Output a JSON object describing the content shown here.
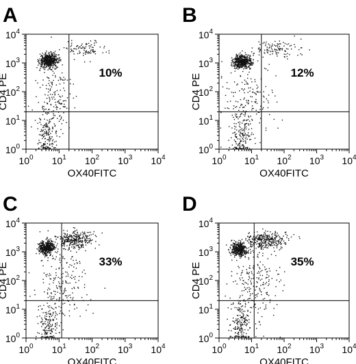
{
  "colors": {
    "background": "#ffffff",
    "ink": "#000000",
    "dots": "#111111"
  },
  "chart_data": [
    {
      "type": "scatter",
      "panel_label": "A",
      "xlabel": "OX40FITC",
      "ylabel": "CD4 PE",
      "x_scale": "log",
      "y_scale": "log",
      "xlim": [
        1,
        10000
      ],
      "ylim": [
        1,
        10000
      ],
      "x_ticks": [
        {
          "base": "10",
          "exp": "0"
        },
        {
          "base": "10",
          "exp": "1"
        },
        {
          "base": "10",
          "exp": "2"
        },
        {
          "base": "10",
          "exp": "3"
        },
        {
          "base": "10",
          "exp": "4"
        }
      ],
      "y_ticks": [
        {
          "base": "10",
          "exp": "0"
        },
        {
          "base": "10",
          "exp": "1"
        },
        {
          "base": "10",
          "exp": "2"
        },
        {
          "base": "10",
          "exp": "3"
        },
        {
          "base": "10",
          "exp": "4"
        }
      ],
      "quadrant_gate": {
        "x": 20,
        "y": 20
      },
      "annotation": "10%",
      "populations": [
        {
          "name": "CD4+ OX40-",
          "count": 520,
          "x_log_center": 0.68,
          "y_log_center": 3.1,
          "x_log_sd": 0.14,
          "y_log_sd": 0.12
        },
        {
          "name": "CD4+ OX40+",
          "count": 90,
          "x_log_center": 1.75,
          "y_log_center": 3.5,
          "x_log_sd": 0.35,
          "y_log_sd": 0.15
        },
        {
          "name": "CD4- OX40-",
          "count": 150,
          "x_log_center": 0.65,
          "y_log_center": 0.45,
          "x_log_sd": 0.15,
          "y_log_sd": 0.4
        },
        {
          "name": "transition",
          "count": 170,
          "x_log_center": 0.85,
          "y_log_center": 1.8,
          "x_log_sd": 0.3,
          "y_log_sd": 0.65
        }
      ]
    },
    {
      "type": "scatter",
      "panel_label": "B",
      "xlabel": "OX40FITC",
      "ylabel": "CD4 PE",
      "x_scale": "log",
      "y_scale": "log",
      "xlim": [
        1,
        10000
      ],
      "ylim": [
        1,
        10000
      ],
      "x_ticks": [
        {
          "base": "10",
          "exp": "0"
        },
        {
          "base": "10",
          "exp": "1"
        },
        {
          "base": "10",
          "exp": "2"
        },
        {
          "base": "10",
          "exp": "3"
        },
        {
          "base": "10",
          "exp": "4"
        }
      ],
      "y_ticks": [
        {
          "base": "10",
          "exp": "0"
        },
        {
          "base": "10",
          "exp": "1"
        },
        {
          "base": "10",
          "exp": "2"
        },
        {
          "base": "10",
          "exp": "3"
        },
        {
          "base": "10",
          "exp": "4"
        }
      ],
      "quadrant_gate": {
        "x": 20,
        "y": 20
      },
      "annotation": "12%",
      "populations": [
        {
          "name": "CD4+ OX40-",
          "count": 480,
          "x_log_center": 0.7,
          "y_log_center": 3.05,
          "x_log_sd": 0.14,
          "y_log_sd": 0.12
        },
        {
          "name": "CD4+ OX40+",
          "count": 110,
          "x_log_center": 1.8,
          "y_log_center": 3.5,
          "x_log_sd": 0.38,
          "y_log_sd": 0.14
        },
        {
          "name": "CD4- OX40-",
          "count": 150,
          "x_log_center": 0.65,
          "y_log_center": 0.45,
          "x_log_sd": 0.16,
          "y_log_sd": 0.4
        },
        {
          "name": "transition",
          "count": 170,
          "x_log_center": 0.9,
          "y_log_center": 1.8,
          "x_log_sd": 0.35,
          "y_log_sd": 0.65
        }
      ]
    },
    {
      "type": "scatter",
      "panel_label": "C",
      "xlabel": "OX40FITC",
      "ylabel": "CD4 PE",
      "x_scale": "log",
      "y_scale": "log",
      "xlim": [
        1,
        10000
      ],
      "ylim": [
        1,
        10000
      ],
      "x_ticks": [
        {
          "base": "10",
          "exp": "0"
        },
        {
          "base": "10",
          "exp": "1"
        },
        {
          "base": "10",
          "exp": "2"
        },
        {
          "base": "10",
          "exp": "3"
        },
        {
          "base": "10",
          "exp": "4"
        }
      ],
      "y_ticks": [
        {
          "base": "10",
          "exp": "0"
        },
        {
          "base": "10",
          "exp": "1"
        },
        {
          "base": "10",
          "exp": "2"
        },
        {
          "base": "10",
          "exp": "3"
        },
        {
          "base": "10",
          "exp": "4"
        }
      ],
      "quadrant_gate": {
        "x": 12,
        "y": 20
      },
      "annotation": "33%",
      "populations": [
        {
          "name": "CD4+ OX40-",
          "count": 420,
          "x_log_center": 0.6,
          "y_log_center": 3.15,
          "x_log_sd": 0.12,
          "y_log_sd": 0.12
        },
        {
          "name": "CD4+ OX40+",
          "count": 300,
          "x_log_center": 1.45,
          "y_log_center": 3.45,
          "x_log_sd": 0.32,
          "y_log_sd": 0.15
        },
        {
          "name": "CD4- OX40-",
          "count": 150,
          "x_log_center": 0.65,
          "y_log_center": 0.45,
          "x_log_sd": 0.15,
          "y_log_sd": 0.4
        },
        {
          "name": "transition",
          "count": 220,
          "x_log_center": 1.1,
          "y_log_center": 1.9,
          "x_log_sd": 0.38,
          "y_log_sd": 0.7
        }
      ]
    },
    {
      "type": "scatter",
      "panel_label": "D",
      "xlabel": "OX40FITC",
      "ylabel": "CD4 PE",
      "x_scale": "log",
      "y_scale": "log",
      "xlim": [
        1,
        10000
      ],
      "ylim": [
        1,
        10000
      ],
      "x_ticks": [
        {
          "base": "10",
          "exp": "0"
        },
        {
          "base": "10",
          "exp": "1"
        },
        {
          "base": "10",
          "exp": "2"
        },
        {
          "base": "10",
          "exp": "3"
        },
        {
          "base": "10",
          "exp": "4"
        }
      ],
      "y_ticks": [
        {
          "base": "10",
          "exp": "0"
        },
        {
          "base": "10",
          "exp": "1"
        },
        {
          "base": "10",
          "exp": "2"
        },
        {
          "base": "10",
          "exp": "3"
        },
        {
          "base": "10",
          "exp": "4"
        }
      ],
      "quadrant_gate": {
        "x": 12,
        "y": 20
      },
      "annotation": "35%",
      "populations": [
        {
          "name": "CD4+ OX40-",
          "count": 400,
          "x_log_center": 0.6,
          "y_log_center": 3.1,
          "x_log_sd": 0.12,
          "y_log_sd": 0.12
        },
        {
          "name": "CD4+ OX40+",
          "count": 320,
          "x_log_center": 1.45,
          "y_log_center": 3.4,
          "x_log_sd": 0.33,
          "y_log_sd": 0.15
        },
        {
          "name": "CD4- OX40-",
          "count": 160,
          "x_log_center": 0.65,
          "y_log_center": 0.45,
          "x_log_sd": 0.15,
          "y_log_sd": 0.4
        },
        {
          "name": "transition",
          "count": 230,
          "x_log_center": 1.1,
          "y_log_center": 1.9,
          "x_log_sd": 0.38,
          "y_log_sd": 0.7
        }
      ]
    }
  ]
}
